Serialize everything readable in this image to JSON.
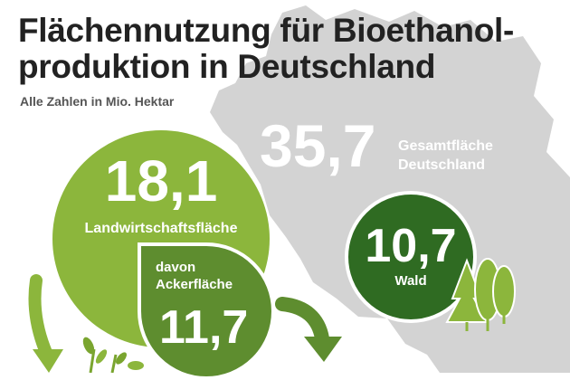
{
  "title_line1": "Flächennutzung für Bioethanol-",
  "title_line2": "produktion in Deutschland",
  "subtitle": "Alle Zahlen in Mio. Hektar",
  "total": {
    "value": "35,7",
    "label_line1": "Gesamtfläche",
    "label_line2": "Deutschland"
  },
  "agricultural": {
    "value": "18,1",
    "label": "Landwirtschaftsfläche"
  },
  "arable": {
    "prefix": "davon",
    "label": "Ackerfläche",
    "value": "11,7"
  },
  "forest": {
    "value": "10,7",
    "label": "Wald"
  },
  "icons": [
    "germany-map-icon",
    "curved-arrow-icon",
    "plant-icon",
    "tree-icon"
  ],
  "colors": {
    "map": "#d3d3d3",
    "agricultural": "#8cb63c",
    "arable": "#5e8d2f",
    "forest": "#2f6b22",
    "title": "#222222"
  }
}
